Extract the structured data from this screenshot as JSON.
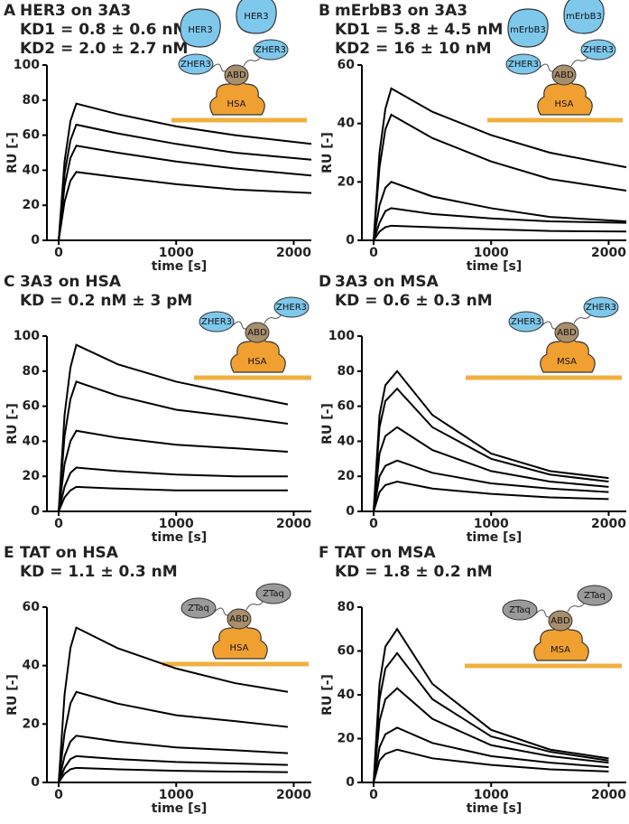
{
  "chart_data": [
    {
      "type": "line",
      "panel": "A",
      "title": "HER3 on 3A3",
      "kd": [
        "KD1 = 0.8 ± 0.6 nM",
        "KD2 = 2.0 ± 2.7 nM"
      ],
      "xlabel": "time [s]",
      "ylabel": "RU [-]",
      "xlim": [
        -100,
        2150
      ],
      "ylim": [
        0,
        100
      ],
      "xticks": [
        0,
        1000,
        2000
      ],
      "yticks": [
        0,
        20,
        40,
        60,
        80,
        100
      ],
      "color": "#000000",
      "x": [
        -100,
        0,
        50,
        100,
        150,
        500,
        1000,
        1500,
        2150
      ],
      "series": [
        {
          "values": [
            0,
            0,
            45,
            68,
            78,
            72,
            65,
            60,
            55
          ]
        },
        {
          "values": [
            0,
            0,
            38,
            57,
            66,
            61,
            55,
            50,
            46
          ]
        },
        {
          "values": [
            0,
            0,
            31,
            47,
            54,
            50,
            45,
            41,
            37
          ]
        },
        {
          "values": [
            0,
            0,
            22,
            34,
            39,
            36,
            32,
            29,
            27
          ]
        }
      ],
      "diagram": {
        "big": [
          "HER3",
          "HER3"
        ],
        "z": [
          "ZHER3",
          "ZHER3"
        ],
        "abd": "ABD",
        "base": "HSA",
        "z_color": "#7ec8ec"
      }
    },
    {
      "type": "line",
      "panel": "B",
      "title": "mErbB3 on 3A3",
      "kd": [
        "KD1 = 5.8 ± 4.5 nM",
        "KD2 = 16 ± 10 nM"
      ],
      "xlabel": "time [s]",
      "ylabel": "RU [-]",
      "xlim": [
        -100,
        2150
      ],
      "ylim": [
        0,
        60
      ],
      "xticks": [
        0,
        1000,
        2000
      ],
      "yticks": [
        0,
        20,
        40,
        60
      ],
      "color": "#000000",
      "x": [
        -100,
        0,
        50,
        100,
        150,
        500,
        1000,
        1500,
        2150
      ],
      "series": [
        {
          "values": [
            0,
            0,
            30,
            45,
            52,
            44,
            36,
            30,
            25
          ]
        },
        {
          "values": [
            0,
            0,
            25,
            38,
            43,
            35,
            27,
            21,
            17
          ]
        },
        {
          "values": [
            0,
            0,
            12,
            18,
            20,
            15,
            11,
            8,
            6.5
          ]
        },
        {
          "values": [
            0,
            0,
            6,
            10,
            11,
            9,
            7.5,
            6.5,
            6
          ]
        },
        {
          "values": [
            0,
            0,
            3,
            4.5,
            5,
            4.5,
            3.8,
            3.2,
            3
          ]
        }
      ],
      "diagram": {
        "big": [
          "mErbB3",
          "mErbB3"
        ],
        "z": [
          "ZHER3",
          "ZHER3"
        ],
        "abd": "ABD",
        "base": "HSA",
        "z_color": "#7ec8ec"
      }
    },
    {
      "type": "line",
      "panel": "C",
      "title": "3A3 on HSA",
      "kd": [
        "KD = 0.2 nM ± 3 pM"
      ],
      "xlabel": "time [s]",
      "ylabel": "RU [-]",
      "xlim": [
        -100,
        2150
      ],
      "ylim": [
        0,
        100
      ],
      "xticks": [
        0,
        1000,
        2000
      ],
      "yticks": [
        0,
        20,
        40,
        60,
        80,
        100
      ],
      "color": "#000000",
      "x": [
        -100,
        0,
        50,
        100,
        150,
        500,
        1000,
        1500,
        1950
      ],
      "series": [
        {
          "values": [
            0,
            0,
            55,
            82,
            95,
            84,
            74,
            67,
            61
          ]
        },
        {
          "values": [
            0,
            0,
            43,
            64,
            74,
            66,
            58,
            54,
            50
          ]
        },
        {
          "values": [
            0,
            0,
            27,
            40,
            46,
            42,
            38,
            36,
            34
          ]
        },
        {
          "values": [
            0,
            0,
            14,
            22,
            25,
            23,
            21,
            20,
            20
          ]
        },
        {
          "values": [
            0,
            0,
            8,
            12,
            14,
            13,
            12,
            12,
            12
          ]
        }
      ],
      "diagram": {
        "z": [
          "ZHER3",
          "ZHER3"
        ],
        "abd": "ABD",
        "base": "HSA",
        "z_color": "#7ec8ec"
      }
    },
    {
      "type": "line",
      "panel": "D",
      "title": "3A3 on MSA",
      "kd": [
        "KD = 0.6 ± 0.3 nM"
      ],
      "xlabel": "time [s]",
      "ylabel": "RU [-]",
      "xlim": [
        -100,
        2150
      ],
      "ylim": [
        0,
        100
      ],
      "xticks": [
        0,
        1000,
        2000
      ],
      "yticks": [
        0,
        20,
        40,
        60,
        80,
        100
      ],
      "color": "#000000",
      "x": [
        -100,
        0,
        50,
        100,
        200,
        500,
        1000,
        1500,
        2000
      ],
      "series": [
        {
          "values": [
            0,
            0,
            55,
            72,
            80,
            55,
            33,
            23,
            19
          ]
        },
        {
          "values": [
            0,
            0,
            48,
            63,
            70,
            48,
            30,
            21,
            17
          ]
        },
        {
          "values": [
            0,
            0,
            33,
            43,
            48,
            35,
            23,
            17,
            14
          ]
        },
        {
          "values": [
            0,
            0,
            20,
            26,
            29,
            22,
            16,
            13,
            11
          ]
        },
        {
          "values": [
            0,
            0,
            11,
            15,
            17,
            13,
            10,
            8,
            7
          ]
        }
      ],
      "diagram": {
        "z": [
          "ZHER3",
          "ZHER3"
        ],
        "abd": "ABD",
        "base": "MSA",
        "z_color": "#7ec8ec"
      }
    },
    {
      "type": "line",
      "panel": "E",
      "title": "TAT on HSA",
      "kd": [
        "KD = 1.1 ± 0.3 nM"
      ],
      "xlabel": "time [s]",
      "ylabel": "RU [-]",
      "xlim": [
        -100,
        2150
      ],
      "ylim": [
        0,
        60
      ],
      "xticks": [
        0,
        1000,
        2000
      ],
      "yticks": [
        0,
        20,
        40,
        60
      ],
      "color": "#000000",
      "x": [
        -100,
        0,
        50,
        100,
        150,
        500,
        1000,
        1500,
        1950
      ],
      "series": [
        {
          "values": [
            0,
            0,
            30,
            46,
            53,
            46,
            39,
            34,
            31
          ]
        },
        {
          "values": [
            0,
            0,
            17,
            27,
            31,
            27,
            23,
            21,
            19
          ]
        },
        {
          "values": [
            0,
            0,
            9,
            14,
            16,
            14,
            12,
            11,
            10
          ]
        },
        {
          "values": [
            0,
            0,
            5,
            8,
            9,
            8,
            7,
            6.5,
            6
          ]
        },
        {
          "values": [
            0,
            0,
            3,
            4.5,
            5,
            4.5,
            4,
            3.7,
            3.5
          ]
        }
      ],
      "diagram": {
        "z": [
          "ZTaq",
          "ZTaq"
        ],
        "abd": "ABD",
        "base": "HSA",
        "z_color": "#9a9a9a"
      }
    },
    {
      "type": "line",
      "panel": "F",
      "title": "TAT on MSA",
      "kd": [
        "KD = 1.8 ± 0.2 nM"
      ],
      "xlabel": "time [s]",
      "ylabel": "RU [-]",
      "xlim": [
        -100,
        2150
      ],
      "ylim": [
        0,
        80
      ],
      "xticks": [
        0,
        1000,
        2000
      ],
      "yticks": [
        0,
        20,
        40,
        60,
        80
      ],
      "color": "#000000",
      "x": [
        -100,
        0,
        50,
        100,
        200,
        500,
        1000,
        1500,
        2000
      ],
      "series": [
        {
          "values": [
            0,
            0,
            45,
            62,
            70,
            45,
            24,
            15,
            11
          ]
        },
        {
          "values": [
            0,
            0,
            38,
            52,
            59,
            38,
            21,
            14,
            10
          ]
        },
        {
          "values": [
            0,
            0,
            28,
            38,
            43,
            29,
            17,
            12,
            9
          ]
        },
        {
          "values": [
            0,
            0,
            16,
            22,
            25,
            18,
            12,
            9,
            7
          ]
        },
        {
          "values": [
            0,
            0,
            10,
            13,
            15,
            11,
            8,
            6,
            5
          ]
        }
      ],
      "diagram": {
        "z": [
          "ZTaq",
          "ZTaq"
        ],
        "abd": "ABD",
        "base": "MSA",
        "z_color": "#9a9a9a"
      }
    }
  ]
}
